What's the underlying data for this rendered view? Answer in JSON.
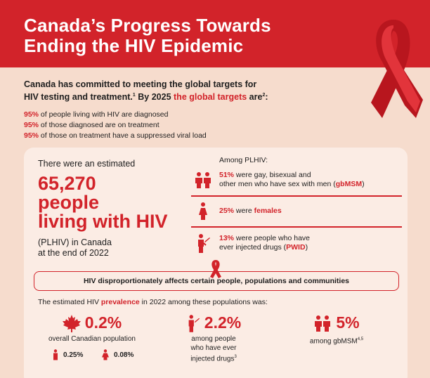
{
  "header": {
    "title_line1": "Canada’s Progress Towards",
    "title_line2": "Ending the HIV Epidemic"
  },
  "intro": {
    "lead_part1": "Canada has committed to meeting the global targets for",
    "lead_part2": "HIV testing and treatment.",
    "lead_sup1": "1",
    "lead_part3": " By 2025 ",
    "lead_highlight": "the global targets",
    "lead_part4": " are",
    "lead_sup2": "2",
    "lead_part5": ":",
    "targets": [
      {
        "pct": "95%",
        "text": " of people living with HIV are diagnosed"
      },
      {
        "pct": "95%",
        "text": " of those diagnosed are on treatment"
      },
      {
        "pct": "95%",
        "text": " of those on treatment have a suppressed viral load"
      }
    ]
  },
  "estimate": {
    "pre": "There were an estimated",
    "big1": "65,270",
    "big2": "people",
    "big3": "living with HIV",
    "post1": "(PLHIV) in Canada",
    "post2": "at the end of 2022"
  },
  "plhiv": {
    "heading": "Among PLHIV:",
    "gb_pct": "51%",
    "gb_text1": " were gay, bisexual and",
    "gb_text2": "other men who have sex with men (",
    "gb_abbr": "gbMSM",
    "gb_close": ")",
    "fem_pct": "25%",
    "fem_text": " were ",
    "fem_word": "females",
    "pwid_pct": "13%",
    "pwid_text1": " were people who have",
    "pwid_text2": "ever injected drugs (",
    "pwid_abbr": "PWID",
    "pwid_close": ")"
  },
  "banner": "HIV disproportionately affects certain people, populations and communities",
  "prevalence": {
    "pre": "The estimated HIV ",
    "word": "prevalence",
    "post": " in 2022 among these populations was:",
    "overall_value": "0.2%",
    "overall_label": "overall Canadian population",
    "male_value": "0.25%",
    "female_value": "0.08%",
    "pwid_value": "2.2%",
    "pwid_label1": "among people",
    "pwid_label2": "who have ever",
    "pwid_label3": "injected drugs",
    "pwid_sup": "3",
    "gb_value": "5%",
    "gb_label": "among gbMSM",
    "gb_sup": "4,5"
  },
  "colors": {
    "accent": "#d2232a",
    "background": "#f6dccd",
    "card": "#fbece4"
  }
}
